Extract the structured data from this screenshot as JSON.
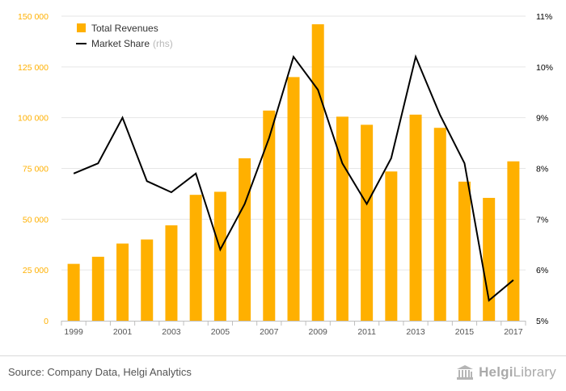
{
  "chart_data": {
    "type": "bar",
    "categories": [
      "1999",
      "2000",
      "2001",
      "2002",
      "2003",
      "2004",
      "2005",
      "2006",
      "2007",
      "2008",
      "2009",
      "2010",
      "2011",
      "2012",
      "2013",
      "2014",
      "2015",
      "2016",
      "2017"
    ],
    "x_tick_labels": [
      "1999",
      "2001",
      "2003",
      "2005",
      "2007",
      "2009",
      "2011",
      "2013",
      "2015",
      "2017"
    ],
    "series": [
      {
        "name": "Total Revenues",
        "type": "bar",
        "axis": "left",
        "color": "#FFB000",
        "values": [
          28000,
          31500,
          38000,
          40000,
          47000,
          62000,
          63500,
          80000,
          103500,
          120000,
          146000,
          100500,
          96500,
          73500,
          101500,
          95000,
          68500,
          60500,
          78500
        ]
      },
      {
        "name": "Market Share",
        "type": "line",
        "axis": "right",
        "color": "#000000",
        "values": [
          7.9,
          8.1,
          9.0,
          7.75,
          7.53,
          7.9,
          6.4,
          7.3,
          8.6,
          10.2,
          9.55,
          8.1,
          7.3,
          8.2,
          10.2,
          9.05,
          8.1,
          5.4,
          5.8
        ]
      }
    ],
    "y_left": {
      "min": 0,
      "max": 150000,
      "ticks": [
        0,
        25000,
        50000,
        75000,
        100000,
        125000,
        150000
      ],
      "tick_labels": [
        "0",
        "25 000",
        "50 000",
        "75 000",
        "100 000",
        "125 000",
        "150 000"
      ],
      "color": "#FFB000"
    },
    "y_right": {
      "min": 5,
      "max": 11,
      "ticks": [
        5,
        6,
        7,
        8,
        9,
        10,
        11
      ],
      "tick_labels": [
        "5%",
        "6%",
        "7%",
        "8%",
        "9%",
        "10%",
        "11%"
      ],
      "color": "#000000"
    },
    "legend": {
      "position": "top-left",
      "items": [
        {
          "label": "Total Revenues",
          "suffix": ""
        },
        {
          "label": "Market Share",
          "suffix": "(rhs)"
        }
      ]
    },
    "grid": true
  },
  "footer": {
    "source": "Source: Company Data, Helgi Analytics",
    "logo_bold": "Helgi",
    "logo_light": "Library"
  }
}
